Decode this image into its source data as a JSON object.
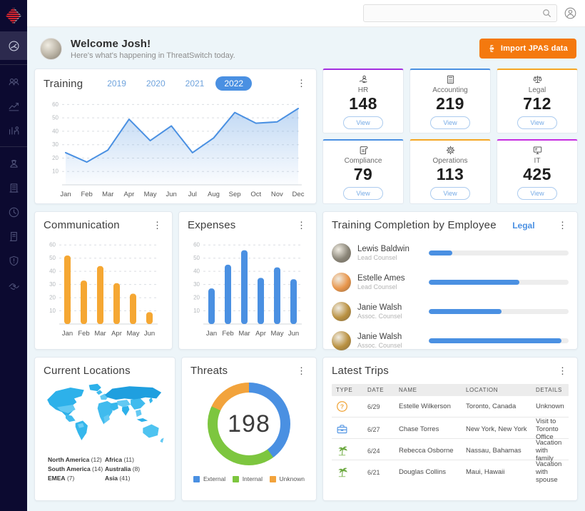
{
  "brand": {
    "logo_color": "#d6252e",
    "sidebar_bg": "#0c0a30"
  },
  "sidebar": {
    "items": [
      {
        "icon": "dashboard-icon",
        "active": true
      },
      {
        "icon": "users-icon",
        "active": false
      },
      {
        "icon": "trend-chart-icon",
        "active": false
      },
      {
        "icon": "analytics-icon",
        "active": false
      },
      {
        "icon": "workforce-icon",
        "active": false
      },
      {
        "icon": "building-icon",
        "active": false
      },
      {
        "icon": "clock-icon",
        "active": false
      },
      {
        "icon": "document-icon",
        "active": false
      },
      {
        "icon": "shield-alert-icon",
        "active": false
      },
      {
        "icon": "handshake-icon",
        "active": false
      }
    ]
  },
  "topbar": {
    "search_value": "",
    "search_placeholder": ""
  },
  "header": {
    "welcome_title": "Welcome Josh!",
    "welcome_subtitle": "Here's what's happening in ThreatSwitch today.",
    "import_button": "Import JPAS data",
    "avatar_color": "#b9b2a4"
  },
  "training_card": {
    "years": [
      "2019",
      "2020",
      "2021",
      "2022"
    ],
    "selected_year": "2022"
  },
  "departments_view_label": "View",
  "departments": [
    {
      "label": "HR",
      "value": "148",
      "accent": "#a32ee0",
      "icon": "hr-icon"
    },
    {
      "label": "Accounting",
      "value": "219",
      "accent": "#4a90e2",
      "icon": "calculator-icon"
    },
    {
      "label": "Legal",
      "value": "712",
      "accent": "#f5a623",
      "icon": "scales-icon"
    },
    {
      "label": "Compliance",
      "value": "79",
      "accent": "#4a90e2",
      "icon": "scroll-icon"
    },
    {
      "label": "Operations",
      "value": "113",
      "accent": "#f5a623",
      "icon": "gear-icon"
    },
    {
      "label": "IT",
      "value": "425",
      "accent": "#c62ee0",
      "icon": "monitor-icon"
    }
  ],
  "chart_data": [
    {
      "id": "training",
      "type": "area",
      "title": "Training",
      "x": [
        "Jan",
        "Feb",
        "Mar",
        "Apr",
        "May",
        "Jun",
        "Jul",
        "Aug",
        "Sep",
        "Oct",
        "Nov",
        "Dec"
      ],
      "values": [
        24,
        17,
        26,
        49,
        33,
        44,
        24,
        35,
        54,
        46,
        47,
        57
      ],
      "ylim": [
        0,
        65
      ],
      "yticks": [
        10,
        20,
        30,
        40,
        50,
        60
      ],
      "color": "#4a90e2",
      "grid": "dashed",
      "legend": "none"
    },
    {
      "id": "communication",
      "type": "bar",
      "title": "Communication",
      "categories": [
        "Jan",
        "Feb",
        "Mar",
        "Apr",
        "May",
        "Jun"
      ],
      "values": [
        52,
        33,
        44,
        31,
        23,
        9
      ],
      "ylim": [
        0,
        65
      ],
      "yticks": [
        10,
        20,
        30,
        40,
        50,
        60
      ],
      "color": "#f5a733",
      "grid": "dashed",
      "legend": "none"
    },
    {
      "id": "expenses",
      "type": "bar",
      "title": "Expenses",
      "categories": [
        "Jan",
        "Feb",
        "Mar",
        "Apr",
        "May",
        "Jun"
      ],
      "values": [
        27,
        45,
        56,
        35,
        43,
        34
      ],
      "ylim": [
        0,
        65
      ],
      "yticks": [
        10,
        20,
        30,
        40,
        50,
        60
      ],
      "color": "#4a90e2",
      "grid": "dashed",
      "legend": "none"
    },
    {
      "id": "threats",
      "type": "pie",
      "title": "Threats",
      "center_label": "198",
      "segments": [
        {
          "label": "External",
          "percent": 40,
          "color": "#4a90e2"
        },
        {
          "label": "Internal",
          "percent": 42,
          "color": "#7dc63f"
        },
        {
          "label": "Unknown",
          "percent": 18,
          "color": "#f2a33c"
        }
      ],
      "legend_position": "bottom"
    }
  ],
  "completion": {
    "title": "Training Completion by Employee",
    "filter_label": "Legal",
    "bar_color": "#4a90e2",
    "employees": [
      {
        "name": "Lewis Baldwin",
        "role": "Lead Counsel",
        "percent": 17,
        "avatar_color": "#8a8578"
      },
      {
        "name": "Estelle Ames",
        "role": "Lead Counsel",
        "percent": 65,
        "avatar_color": "#e8954a"
      },
      {
        "name": "Janie Walsh",
        "role": "Assoc. Counsel",
        "percent": 52,
        "avatar_color": "#b99040"
      },
      {
        "name": "Janie Walsh",
        "role": "Assoc. Counsel",
        "percent": 95,
        "avatar_color": "#b99040"
      }
    ]
  },
  "locations": {
    "title": "Current Locations",
    "legend": [
      {
        "label": "North America",
        "count": "(12)"
      },
      {
        "label": "Africa",
        "count": "(11)"
      },
      {
        "label": "South America",
        "count": "(14)"
      },
      {
        "label": "Australia",
        "count": "(8)"
      },
      {
        "label": "EMEA",
        "count": "(7)"
      },
      {
        "label": "Asia",
        "count": "(41)"
      }
    ]
  },
  "trips": {
    "title": "Latest Trips",
    "columns": [
      "TYPE",
      "DATE",
      "NAME",
      "LOCATION",
      "DETAILS"
    ],
    "rows": [
      {
        "icon": "question-icon",
        "date": "6/29",
        "name": "Estelle Wilkerson",
        "location": "Toronto, Canada",
        "details": "Unknown"
      },
      {
        "icon": "briefcase-icon",
        "date": "6/27",
        "name": "Chase Torres",
        "location": "New York, New York",
        "details": "Visit to Toronto Office"
      },
      {
        "icon": "palm-tree-icon",
        "date": "6/24",
        "name": "Rebecca Osborne",
        "location": "Nassau, Bahamas",
        "details": "Vacation with family"
      },
      {
        "icon": "palm-tree-icon",
        "date": "6/21",
        "name": "Douglas Collins",
        "location": "Maui, Hawaii",
        "details": "Vacation with spouse"
      }
    ]
  }
}
